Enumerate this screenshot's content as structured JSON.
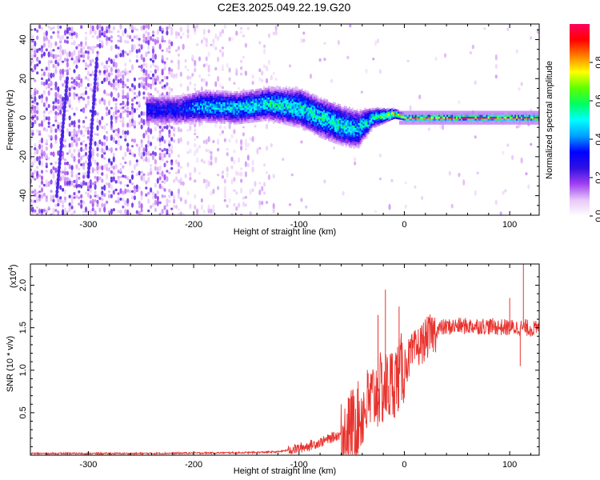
{
  "title": "C2E3.2025.049.22.19.G20",
  "chart_data": [
    {
      "type": "heatmap",
      "xlabel": "Height of straight line (km)",
      "ylabel": "Frequency (Hz)",
      "xlim": [
        -355,
        128
      ],
      "ylim": [
        -50,
        48
      ],
      "xticks": [
        -300,
        -200,
        -100,
        0,
        100
      ],
      "yticks": [
        -40,
        -20,
        0,
        20,
        40
      ],
      "colorbar": {
        "label": "Normalized spectral amplitude",
        "range": [
          0,
          1
        ],
        "ticks": [
          0.0,
          0.2,
          0.4,
          0.6,
          0.8
        ],
        "tick_labels": [
          "0.0",
          "0.2",
          "0.4",
          "0.6",
          "0.8"
        ],
        "colors": [
          "#ffffff",
          "#e8c8f8",
          "#a040f0",
          "#3010e0",
          "#0000ff",
          "#00a0ff",
          "#00ffff",
          "#00ff60",
          "#60ff00",
          "#ffff00",
          "#ff8000",
          "#ff0000",
          "#ff0060"
        ]
      },
      "signal_track": [
        {
          "x": -215,
          "y": 4,
          "width": 10,
          "amp": 0.3
        },
        {
          "x": -190,
          "y": 6,
          "width": 10,
          "amp": 0.45
        },
        {
          "x": -160,
          "y": 5,
          "width": 10,
          "amp": 0.45
        },
        {
          "x": -130,
          "y": 7,
          "width": 10,
          "amp": 0.5
        },
        {
          "x": -100,
          "y": 5,
          "width": 12,
          "amp": 0.5
        },
        {
          "x": -80,
          "y": 0,
          "width": 12,
          "amp": 0.5
        },
        {
          "x": -60,
          "y": -4,
          "width": 12,
          "amp": 0.5
        },
        {
          "x": -45,
          "y": -6,
          "width": 12,
          "amp": 0.45
        },
        {
          "x": -30,
          "y": 0,
          "width": 6,
          "amp": 0.5
        },
        {
          "x": -10,
          "y": 2,
          "width": 3,
          "amp": 0.7
        },
        {
          "x": 0,
          "y": 0,
          "width": 2,
          "amp": 0.85
        },
        {
          "x": 50,
          "y": 0,
          "width": 2,
          "amp": 0.9
        },
        {
          "x": 100,
          "y": 0,
          "width": 2,
          "amp": 0.9
        },
        {
          "x": 128,
          "y": 0,
          "width": 2,
          "amp": 0.9
        }
      ]
    },
    {
      "type": "line",
      "xlabel": "Height of straight line (km)",
      "ylabel": "SNR (10 * v/v)",
      "y_multiplier": "(x10",
      "y_multiplier_exp": "4",
      "y_multiplier_close": ")",
      "xlim": [
        -355,
        128
      ],
      "ylim": [
        0,
        2.25
      ],
      "xticks": [
        -300,
        -200,
        -100,
        0,
        100
      ],
      "yticks": [
        0.5,
        1.0,
        1.5,
        2.0
      ],
      "ytick_labels": [
        "0.5",
        "1.0",
        "1.5",
        "2.0"
      ],
      "color": "#e8332e",
      "series": [
        {
          "x": [
            -355,
            -300,
            -250,
            -200,
            -150,
            -120,
            -100,
            -80,
            -60,
            -45,
            -35,
            -25,
            -15,
            -5,
            5,
            15,
            25,
            35,
            50,
            75,
            100,
            115,
            128
          ],
          "y": [
            0.02,
            0.02,
            0.02,
            0.025,
            0.03,
            0.04,
            0.08,
            0.15,
            0.25,
            0.4,
            0.6,
            0.75,
            0.8,
            0.95,
            1.15,
            1.3,
            1.42,
            1.5,
            1.52,
            1.52,
            1.5,
            1.5,
            1.48
          ]
        }
      ],
      "spikes": [
        {
          "x": -18,
          "y": 1.95
        },
        {
          "x": -5,
          "y": 1.75
        },
        {
          "x": -25,
          "y": 1.65
        },
        {
          "x": 113,
          "y": 2.25
        },
        {
          "x": 100,
          "y": 1.85
        },
        {
          "x": 110,
          "y": 1.05
        }
      ]
    }
  ]
}
